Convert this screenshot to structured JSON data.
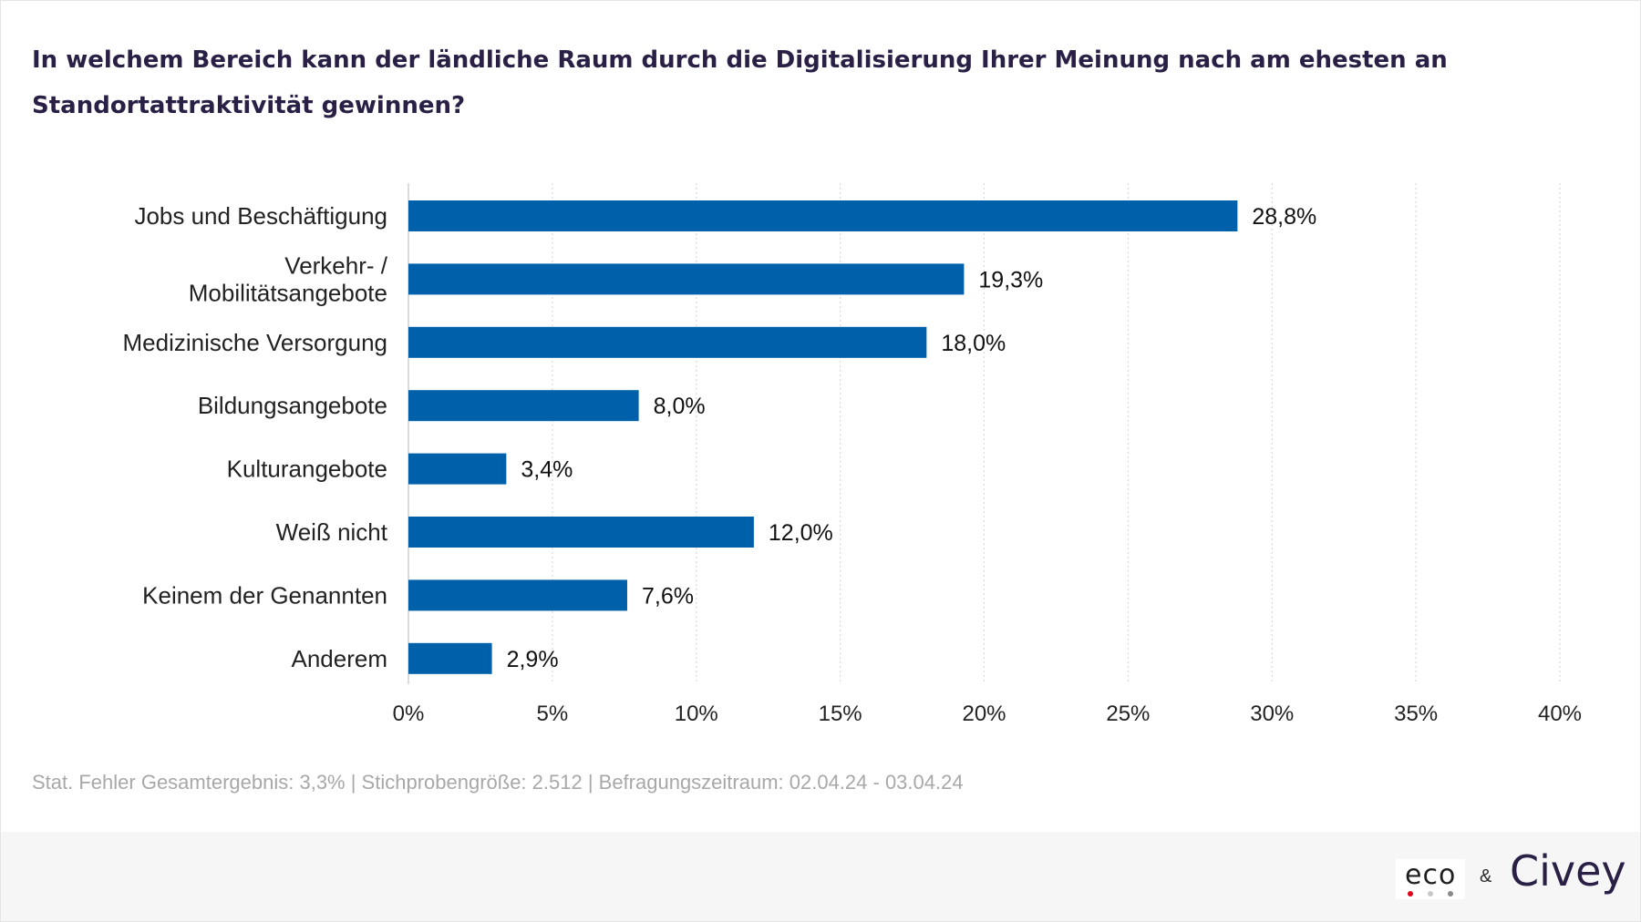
{
  "title": "In welchem Bereich kann der ländliche Raum durch die Digitalisierung Ihrer Meinung nach am ehesten an Standortattraktivität gewinnen?",
  "footnote": "Stat. Fehler Gesamtergebnis: 3,3% | Stichprobengröße: 2.512 | Befragungszeitraum: 02.04.24 - 03.04.24",
  "brand": {
    "eco": "eco",
    "ampersand": "&",
    "civey": "Civey",
    "eco_dot_colors": [
      "#e3001b",
      "#c8c8c8",
      "#8a8a8a"
    ]
  },
  "colors": {
    "bar": "#0061aa",
    "grid": "#d9d9d9",
    "label": "#222222"
  },
  "chart_data": {
    "type": "bar",
    "orientation": "horizontal",
    "categories": [
      [
        "Jobs und Beschäftigung"
      ],
      [
        "Verkehr- /",
        "Mobilitätsangebote"
      ],
      [
        "Medizinische Versorgung"
      ],
      [
        "Bildungsangebote"
      ],
      [
        "Kulturangebote"
      ],
      [
        "Weiß nicht"
      ],
      [
        "Keinem der Genannten"
      ],
      [
        "Anderem"
      ]
    ],
    "values": [
      28.8,
      19.3,
      18.0,
      8.0,
      3.4,
      12.0,
      7.6,
      2.9
    ],
    "value_labels": [
      "28,8%",
      "19,3%",
      "18,0%",
      "8,0%",
      "3,4%",
      "12,0%",
      "7,6%",
      "2,9%"
    ],
    "xlim": [
      0,
      40
    ],
    "xticks": [
      0,
      5,
      10,
      15,
      20,
      25,
      30,
      35,
      40
    ],
    "xtick_labels": [
      "0%",
      "5%",
      "10%",
      "15%",
      "20%",
      "25%",
      "30%",
      "35%",
      "40%"
    ],
    "grid": "vertical-dotted",
    "legend": "none"
  }
}
